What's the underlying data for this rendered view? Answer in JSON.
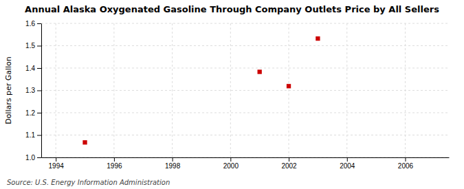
{
  "chart_data": {
    "type": "scatter",
    "title": "Annual Alaska Oxygenated Gasoline Through Company Outlets Price by All Sellers",
    "ylabel": "Dollars per Gallon",
    "source": "Source: U.S. Energy Information Administration",
    "x": [
      1995,
      2001,
      2002,
      2003
    ],
    "values": [
      1.067,
      1.383,
      1.319,
      1.532
    ],
    "color": "#cc0000",
    "marker": "square",
    "xlim": [
      1993.5,
      2007.5
    ],
    "xticks": [
      1994,
      1996,
      1998,
      2000,
      2002,
      2004,
      2006
    ],
    "ylim": [
      1.0,
      1.6
    ],
    "yticks": [
      {
        "value": 1.0,
        "label": "1.0"
      },
      1.1,
      1.2,
      1.3,
      1.4,
      1.5,
      1.6
    ],
    "grid": true
  }
}
